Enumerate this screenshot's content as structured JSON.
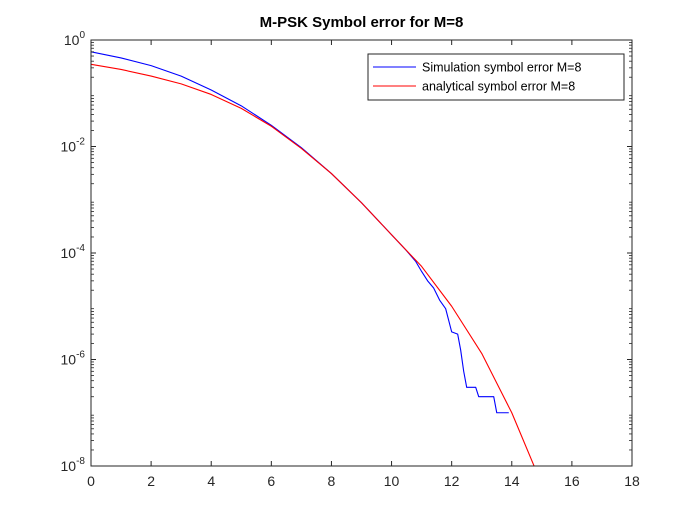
{
  "chart_data": {
    "type": "line",
    "title": "M-PSK Symbol error for M=8",
    "xlabel": "",
    "ylabel": "",
    "xlim": [
      0,
      18
    ],
    "ylim": [
      1e-08,
      1
    ],
    "yscale": "log",
    "x_ticks": [
      0,
      2,
      4,
      6,
      8,
      10,
      12,
      14,
      16,
      18
    ],
    "x_tick_labels": [
      "0",
      "2",
      "4",
      "6",
      "8",
      "10",
      "12",
      "14",
      "16",
      "18"
    ],
    "y_ticks": [
      1e-08,
      1e-06,
      0.0001,
      0.01,
      1
    ],
    "y_tick_labels": [
      {
        "base": "10",
        "exp": "-8"
      },
      {
        "base": "10",
        "exp": "-6"
      },
      {
        "base": "10",
        "exp": "-4"
      },
      {
        "base": "10",
        "exp": "-2"
      },
      {
        "base": "10",
        "exp": "0"
      }
    ],
    "grid": false,
    "legend_position": "top-right",
    "series": [
      {
        "name": "Simulation symbol error M=8",
        "color": "#0000ff",
        "x": [
          0,
          1,
          2,
          3,
          4,
          5,
          6,
          7,
          8,
          9,
          10,
          10.5,
          10.8,
          11,
          11.2,
          11.4,
          11.6,
          11.8,
          12.0,
          12.2,
          12.3,
          12.4,
          12.5,
          12.6,
          12.8,
          12.9,
          13.0,
          13.1,
          13.2,
          13.4,
          13.5,
          13.6,
          13.9
        ],
        "y": [
          0.6,
          0.46,
          0.33,
          0.21,
          0.115,
          0.058,
          0.025,
          0.0095,
          0.0031,
          0.00088,
          0.00022,
          0.00011,
          7e-05,
          4.5e-05,
          3e-05,
          2.2e-05,
          1.3e-05,
          9e-06,
          3.3e-06,
          3e-06,
          1.5e-06,
          6e-07,
          3e-07,
          3e-07,
          3e-07,
          2e-07,
          2e-07,
          2e-07,
          2e-07,
          2e-07,
          1e-07,
          1e-07,
          1e-07
        ]
      },
      {
        "name": "analytical symbol error M=8",
        "color": "#ff0000",
        "x": [
          0,
          1,
          2,
          3,
          4,
          5,
          6,
          7,
          8,
          9,
          10,
          11,
          12,
          13,
          14,
          15,
          15.8
        ],
        "y": [
          0.35,
          0.28,
          0.21,
          0.15,
          0.095,
          0.052,
          0.024,
          0.0092,
          0.0031,
          0.00088,
          0.00022,
          5.6e-05,
          1e-05,
          1.3e-06,
          1e-07,
          4.5e-09,
          1e-08
        ]
      }
    ]
  }
}
